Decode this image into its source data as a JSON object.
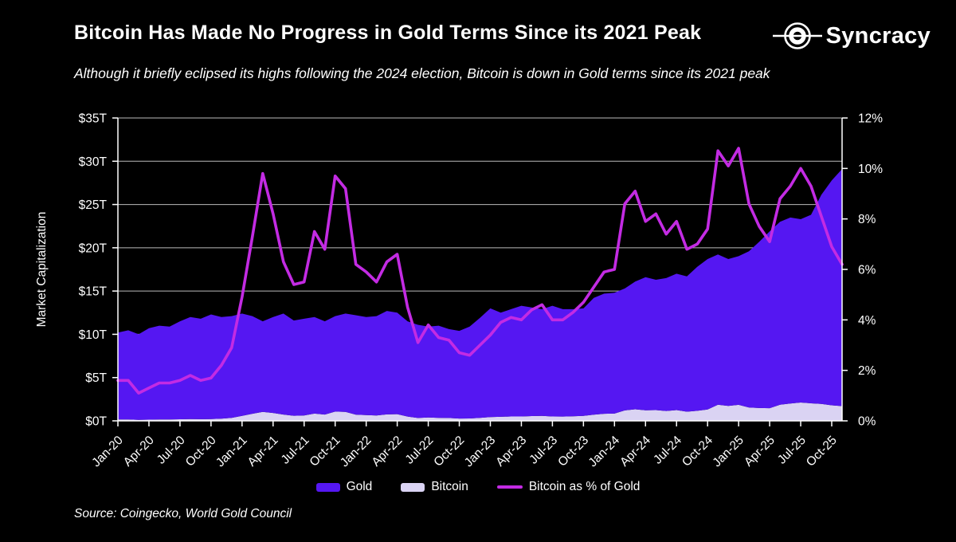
{
  "header": {
    "title": "Bitcoin Has Made No Progress in Gold Terms Since its 2021 Peak",
    "subtitle": "Although it briefly eclipsed its highs following the 2024 election, Bitcoin is down in Gold terms since its 2021 peak"
  },
  "logo": {
    "brand": "Syncracy"
  },
  "source": "Source: Coingecko, World Gold Council",
  "colors": {
    "background": "#000000",
    "gold_area": "#5517F2",
    "bitcoin_area": "#DAD3F3",
    "pct_line": "#C32BE3",
    "gridline": "#BBBBBB",
    "axis": "#FFFFFF",
    "text": "#FFFFFF"
  },
  "legend": [
    {
      "label": "Gold",
      "type": "area",
      "color": "#5517F2"
    },
    {
      "label": "Bitcoin",
      "type": "area",
      "color": "#DAD3F3"
    },
    {
      "label": "Bitcoin as % of Gold",
      "type": "line",
      "color": "#C32BE3"
    }
  ],
  "chart_data": {
    "type": "area",
    "subtype": "stacked areas (left axis) with secondary percentage line (right axis)",
    "x_start": "Jan-20",
    "x_interval": "monthly",
    "x_tick_labels": [
      "Jan-20",
      "Apr-20",
      "Jul-20",
      "Oct-20",
      "Jan-21",
      "Apr-21",
      "Jul-21",
      "Oct-21",
      "Jan-22",
      "Apr-22",
      "Jul-22",
      "Oct-22",
      "Jan-23",
      "Apr-23",
      "Jul-23",
      "Oct-23",
      "Jan-24",
      "Apr-24",
      "Jul-24",
      "Oct-24",
      "Jan-25",
      "Apr-25",
      "Jul-25",
      "Oct-25"
    ],
    "x_ticks_every_n_months": 3,
    "y_left": {
      "label": "Market Capitalization",
      "ticks": [
        "$0T",
        "$5T",
        "$10T",
        "$15T",
        "$20T",
        "$25T",
        "$30T",
        "$35T"
      ],
      "range": [
        0,
        35
      ]
    },
    "y_right": {
      "ticks": [
        "0%",
        "2%",
        "4%",
        "6%",
        "8%",
        "10%",
        "12%"
      ],
      "range": [
        0,
        12
      ]
    },
    "grid": "horizontal",
    "stacked": true,
    "legend_position": "bottom-center",
    "series": [
      {
        "name": "Gold",
        "axis": "left",
        "unit": "$T",
        "values": [
          10.04,
          10.3,
          9.89,
          10.56,
          10.84,
          10.74,
          11.32,
          11.79,
          11.61,
          12.09,
          11.74,
          11.76,
          11.82,
          11.28,
          10.47,
          11.09,
          11.67,
          11.01,
          11.18,
          11.16,
          10.77,
          11.03,
          11.36,
          11.49,
          11.33,
          11.47,
          11.95,
          11.73,
          11.0,
          10.77,
          10.5,
          10.65,
          10.27,
          10.13,
          10.62,
          11.55,
          12.57,
          12.03,
          12.39,
          12.79,
          12.55,
          12.33,
          12.79,
          12.4,
          12.37,
          12.42,
          13.49,
          13.88,
          13.96,
          14.09,
          14.76,
          15.38,
          15.06,
          15.36,
          15.76,
          15.64,
          16.64,
          17.38,
          17.36,
          16.98,
          17.18,
          18.05,
          19.22,
          20.44,
          21.14,
          21.5,
          21.18,
          21.78,
          24.17,
          25.98,
          27.4
        ]
      },
      {
        "name": "Bitcoin",
        "axis": "left",
        "unit": "$T",
        "values": [
          0.16,
          0.16,
          0.11,
          0.14,
          0.16,
          0.16,
          0.18,
          0.21,
          0.19,
          0.21,
          0.26,
          0.34,
          0.58,
          0.82,
          1.03,
          0.91,
          0.73,
          0.59,
          0.62,
          0.84,
          0.73,
          1.07,
          1.04,
          0.71,
          0.67,
          0.63,
          0.75,
          0.77,
          0.5,
          0.33,
          0.4,
          0.35,
          0.33,
          0.27,
          0.28,
          0.35,
          0.43,
          0.47,
          0.51,
          0.51,
          0.55,
          0.57,
          0.51,
          0.5,
          0.53,
          0.58,
          0.71,
          0.82,
          0.84,
          1.21,
          1.34,
          1.22,
          1.24,
          1.14,
          1.24,
          1.06,
          1.16,
          1.32,
          1.86,
          1.72,
          1.85,
          1.55,
          1.48,
          1.46,
          1.86,
          2.0,
          2.12,
          2.03,
          1.95,
          1.8,
          1.7
        ]
      },
      {
        "name": "Bitcoin as % of Gold",
        "axis": "right",
        "unit": "%",
        "values": [
          1.6,
          1.6,
          1.1,
          1.3,
          1.5,
          1.5,
          1.6,
          1.8,
          1.6,
          1.7,
          2.2,
          2.9,
          4.9,
          7.3,
          9.8,
          8.2,
          6.3,
          5.4,
          5.5,
          7.5,
          6.8,
          9.7,
          9.2,
          6.2,
          5.9,
          5.5,
          6.3,
          6.6,
          4.5,
          3.1,
          3.8,
          3.3,
          3.2,
          2.7,
          2.6,
          3.0,
          3.4,
          3.9,
          4.1,
          4.0,
          4.4,
          4.6,
          4.0,
          4.0,
          4.3,
          4.7,
          5.3,
          5.9,
          6.0,
          8.6,
          9.1,
          7.9,
          8.2,
          7.4,
          7.9,
          6.8,
          7.0,
          7.6,
          10.7,
          10.1,
          10.8,
          8.6,
          7.7,
          7.1,
          8.8,
          9.3,
          10.0,
          9.3,
          8.1,
          6.9,
          6.2
        ]
      }
    ]
  }
}
